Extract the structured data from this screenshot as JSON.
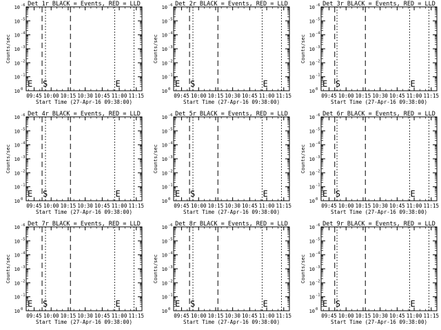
{
  "chart_data": [
    {
      "type": "line",
      "title": "Det 1r BLACK = Events, RED = LLD",
      "xlabel": "Start Time (27-Apr-16 09:38:00)",
      "ylabel": "Counts/sec",
      "xticks": [
        "09:45",
        "10:00",
        "10:15",
        "10:30",
        "10:45",
        "11:00",
        "11:15"
      ],
      "ytick_exponents": [
        "0",
        "-1",
        "-2",
        "-3",
        "-4",
        "-5",
        "-6"
      ],
      "ylim_exponent": [
        0,
        -6
      ],
      "xlim": [
        "09:38",
        "11:20"
      ],
      "series": [],
      "markers": [
        {
          "label": "E",
          "time": "09:38"
        },
        {
          "label": "S",
          "time": "09:52"
        },
        {
          "label": "E",
          "time": "10:56"
        }
      ],
      "dashed_lines": [
        "09:52",
        "10:17"
      ],
      "dotted_lines": [
        "09:55",
        "10:56",
        "11:13"
      ]
    },
    {
      "type": "line",
      "title": "Det 2r BLACK = Events, RED = LLD",
      "xlabel": "Start Time (27-Apr-16 09:38:00)",
      "ylabel": "Counts/sec",
      "xticks": [
        "09:45",
        "10:00",
        "10:15",
        "10:30",
        "10:45",
        "11:00",
        "11:15"
      ],
      "ytick_exponents": [
        "0",
        "-1",
        "-2",
        "-3",
        "-4",
        "-5",
        "-6"
      ],
      "ylim_exponent": [
        0,
        -6
      ],
      "xlim": [
        "09:38",
        "11:20"
      ],
      "series": [],
      "markers": [
        {
          "label": "E",
          "time": "09:38"
        },
        {
          "label": "S",
          "time": "09:52"
        },
        {
          "label": "E",
          "time": "10:56"
        }
      ],
      "dashed_lines": [
        "09:52",
        "10:17"
      ],
      "dotted_lines": [
        "09:55",
        "10:56",
        "11:13"
      ]
    },
    {
      "type": "line",
      "title": "Det 3r BLACK = Events, RED = LLD",
      "xlabel": "Start Time (27-Apr-16 09:38:00)",
      "ylabel": "Counts/sec",
      "xticks": [
        "09:45",
        "10:00",
        "10:15",
        "10:30",
        "10:45",
        "11:00",
        "11:15"
      ],
      "ytick_exponents": [
        "0",
        "-1",
        "-2",
        "-3",
        "-4",
        "-5",
        "-6"
      ],
      "ylim_exponent": [
        0,
        -6
      ],
      "xlim": [
        "09:38",
        "11:20"
      ],
      "series": [],
      "markers": [
        {
          "label": "E",
          "time": "09:38"
        },
        {
          "label": "S",
          "time": "09:50"
        },
        {
          "label": "E",
          "time": "10:56"
        }
      ],
      "dashed_lines": [
        "09:50",
        "10:17"
      ],
      "dotted_lines": [
        "09:52",
        "10:56",
        "11:13"
      ]
    },
    {
      "type": "line",
      "title": "Det 4r BLACK = Events, RED = LLD",
      "xlabel": "Start Time (27-Apr-16 09:38:00)",
      "ylabel": "Counts/sec",
      "xticks": [
        "09:45",
        "10:00",
        "10:15",
        "10:30",
        "10:45",
        "11:00",
        "11:15"
      ],
      "ytick_exponents": [
        "0",
        "-1",
        "-2",
        "-3",
        "-4",
        "-5",
        "-6"
      ],
      "ylim_exponent": [
        0,
        -6
      ],
      "xlim": [
        "09:38",
        "11:20"
      ],
      "series": [],
      "markers": [
        {
          "label": "E",
          "time": "09:38"
        },
        {
          "label": "S",
          "time": "09:52"
        },
        {
          "label": "E",
          "time": "10:56"
        }
      ],
      "dashed_lines": [
        "09:52",
        "10:17"
      ],
      "dotted_lines": [
        "09:55",
        "10:56",
        "11:13"
      ]
    },
    {
      "type": "line",
      "title": "Det 5r BLACK = Events, RED = LLD",
      "xlabel": "Start Time (27-Apr-16 09:38:00)",
      "ylabel": "Counts/sec",
      "xticks": [
        "09:45",
        "10:00",
        "10:15",
        "10:30",
        "10:45",
        "11:00",
        "11:15"
      ],
      "ytick_exponents": [
        "0",
        "-1",
        "-2",
        "-3",
        "-4",
        "-5",
        "-6"
      ],
      "ylim_exponent": [
        0,
        -6
      ],
      "xlim": [
        "09:38",
        "11:20"
      ],
      "series": [],
      "markers": [
        {
          "label": "E",
          "time": "09:38"
        },
        {
          "label": "S",
          "time": "09:52"
        },
        {
          "label": "E",
          "time": "10:56"
        }
      ],
      "dashed_lines": [
        "09:52",
        "10:17"
      ],
      "dotted_lines": [
        "09:55",
        "10:56",
        "11:13"
      ]
    },
    {
      "type": "line",
      "title": "Det 6r BLACK = Events, RED = LLD",
      "xlabel": "Start Time (27-Apr-16 09:38:00)",
      "ylabel": "Counts/sec",
      "xticks": [
        "09:45",
        "10:00",
        "10:15",
        "10:30",
        "10:45",
        "11:00",
        "11:15"
      ],
      "ytick_exponents": [
        "0",
        "-1",
        "-2",
        "-3",
        "-4",
        "-5",
        "-6"
      ],
      "ylim_exponent": [
        0,
        -6
      ],
      "xlim": [
        "09:38",
        "11:20"
      ],
      "series": [],
      "markers": [
        {
          "label": "E",
          "time": "09:38"
        },
        {
          "label": "S",
          "time": "09:50"
        },
        {
          "label": "E",
          "time": "10:56"
        }
      ],
      "dashed_lines": [
        "09:50",
        "10:17"
      ],
      "dotted_lines": [
        "09:52",
        "10:56",
        "11:13"
      ]
    },
    {
      "type": "line",
      "title": "Det 7r BLACK = Events, RED = LLD",
      "xlabel": "Start Time (27-Apr-16 09:38:00)",
      "ylabel": "Counts/sec",
      "xticks": [
        "09:45",
        "10:00",
        "10:15",
        "10:30",
        "10:45",
        "11:00",
        "11:15"
      ],
      "ytick_exponents": [
        "0",
        "-1",
        "-2",
        "-3",
        "-4",
        "-5",
        "-6"
      ],
      "ylim_exponent": [
        0,
        -6
      ],
      "xlim": [
        "09:38",
        "11:20"
      ],
      "series": [],
      "markers": [
        {
          "label": "E",
          "time": "09:38"
        },
        {
          "label": "S",
          "time": "09:52"
        },
        {
          "label": "E",
          "time": "10:56"
        }
      ],
      "dashed_lines": [
        "09:52",
        "10:17"
      ],
      "dotted_lines": [
        "09:55",
        "10:56",
        "11:13"
      ]
    },
    {
      "type": "line",
      "title": "Det 8r BLACK = Events, RED = LLD",
      "xlabel": "Start Time (27-Apr-16 09:38:00)",
      "ylabel": "Counts/sec",
      "xticks": [
        "09:45",
        "10:00",
        "10:15",
        "10:30",
        "10:45",
        "11:00",
        "11:15"
      ],
      "ytick_exponents": [
        "0",
        "-1",
        "-2",
        "-3",
        "-4",
        "-5",
        "-6"
      ],
      "ylim_exponent": [
        0,
        -6
      ],
      "xlim": [
        "09:38",
        "11:20"
      ],
      "series": [],
      "markers": [
        {
          "label": "E",
          "time": "09:38"
        },
        {
          "label": "S",
          "time": "09:52"
        },
        {
          "label": "E",
          "time": "10:56"
        }
      ],
      "dashed_lines": [
        "09:52",
        "10:17"
      ],
      "dotted_lines": [
        "09:55",
        "10:56",
        "11:13"
      ]
    },
    {
      "type": "line",
      "title": "Det 9r BLACK = Events, RED = LLD",
      "xlabel": "Start Time (27-Apr-16 09:38:00)",
      "ylabel": "Counts/sec",
      "xticks": [
        "09:45",
        "10:00",
        "10:15",
        "10:30",
        "10:45",
        "11:00",
        "11:15"
      ],
      "ytick_exponents": [
        "0",
        "-1",
        "-2",
        "-3",
        "-4",
        "-5",
        "-6"
      ],
      "ylim_exponent": [
        0,
        -6
      ],
      "xlim": [
        "09:38",
        "11:20"
      ],
      "series": [],
      "markers": [
        {
          "label": "E",
          "time": "09:38"
        },
        {
          "label": "S",
          "time": "09:50"
        },
        {
          "label": "E",
          "time": "10:56"
        }
      ],
      "dashed_lines": [
        "09:50",
        "10:17"
      ],
      "dotted_lines": [
        "09:52",
        "10:56",
        "11:13"
      ]
    }
  ]
}
